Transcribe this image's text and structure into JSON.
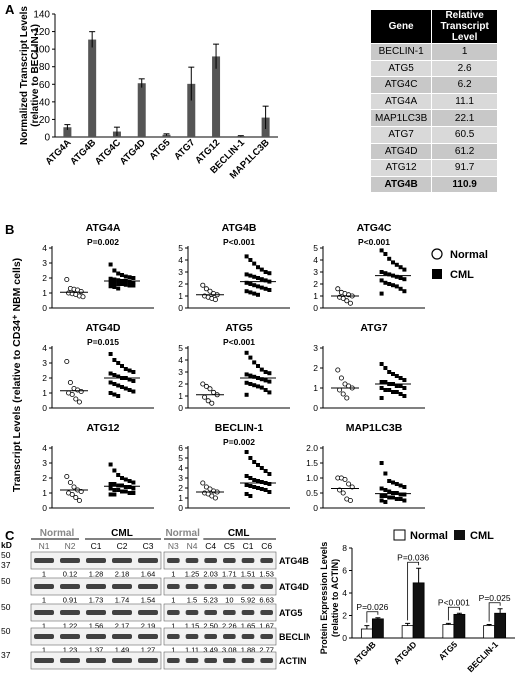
{
  "panels": {
    "a": "A",
    "b": "B",
    "c": "C"
  },
  "chart_data": [
    {
      "type": "bar",
      "panel": "A",
      "ylabel_line1": "Normalized Transcript Levels",
      "ylabel_line2": "(relative to BECLIN-1)",
      "ylim": [
        0,
        140
      ],
      "yticks": [
        0,
        20,
        40,
        60,
        80,
        100,
        120,
        140
      ],
      "categories": [
        "ATG4A",
        "ATG4B",
        "ATG4C",
        "ATG4D",
        "ATG5",
        "ATG7",
        "ATG12",
        "BECLIN-1",
        "MAP1LC3B"
      ],
      "values": [
        11.1,
        110.9,
        6.2,
        61.2,
        2.6,
        60.5,
        91.7,
        1,
        22.1
      ],
      "errors": [
        3,
        9,
        5,
        5,
        1,
        19,
        14,
        0.5,
        13
      ],
      "bar_color": "#555555"
    },
    {
      "type": "table",
      "panel": "A",
      "header": [
        "Gene",
        "Relative Transcript Level"
      ],
      "rows": [
        [
          "BECLIN-1",
          "1"
        ],
        [
          "ATG5",
          "2.6"
        ],
        [
          "ATG4C",
          "6.2"
        ],
        [
          "ATG4A",
          "11.1"
        ],
        [
          "MAP1LC3B",
          "22.1"
        ],
        [
          "ATG7",
          "60.5"
        ],
        [
          "ATG4D",
          "61.2"
        ],
        [
          "ATG12",
          "91.7"
        ],
        [
          "ATG4B",
          "110.9"
        ]
      ]
    },
    {
      "type": "scatter",
      "panel": "B",
      "ylabel": "Transcript Levels (relative to CD34⁺ NBM cells)",
      "legend": [
        {
          "name": "Normal",
          "marker": "open-circle"
        },
        {
          "name": "CML",
          "marker": "filled-square"
        }
      ],
      "subplots": [
        {
          "title": "ATG4A",
          "pvalue": "P=0.002",
          "ylim": [
            0,
            4
          ],
          "yticks": [
            "0",
            "1",
            "2",
            "3",
            "4"
          ],
          "ytick_values": [
            0,
            1,
            2,
            3,
            4
          ],
          "normal_mean": 1.05,
          "cml_mean": 1.8,
          "normal": [
            1.9,
            1.3,
            1.25,
            1.2,
            1.1,
            1.0,
            0.95,
            0.9,
            0.8,
            0.75
          ],
          "cml": [
            2.9,
            2.5,
            2.3,
            2.2,
            2.1,
            2.05,
            2.0,
            1.95,
            1.9,
            1.85,
            1.8,
            1.8,
            1.75,
            1.7,
            1.7,
            1.65,
            1.6,
            1.6,
            1.55,
            1.5,
            1.5,
            1.45,
            1.4,
            1.3
          ]
        },
        {
          "title": "ATG4B",
          "pvalue": "P<0.001",
          "ylim": [
            0,
            5
          ],
          "yticks": [
            "0",
            "1",
            "2",
            "3",
            "4",
            "5"
          ],
          "ytick_values": [
            0,
            1,
            2,
            3,
            4,
            5
          ],
          "normal_mean": 1.1,
          "cml_mean": 2.2,
          "normal": [
            1.9,
            1.6,
            1.4,
            1.2,
            1.1,
            1.0,
            0.9,
            0.8,
            0.7
          ],
          "cml": [
            4.3,
            4.0,
            3.7,
            3.4,
            3.2,
            3.0,
            2.9,
            2.8,
            2.7,
            2.6,
            2.5,
            2.4,
            2.3,
            2.2,
            2.1,
            2.0,
            1.9,
            1.8,
            1.7,
            1.6,
            1.5,
            1.4,
            1.3,
            1.2,
            1.1
          ]
        },
        {
          "title": "ATG4C",
          "pvalue": "P<0.001",
          "ylim": [
            0,
            5
          ],
          "yticks": [
            "0",
            "1",
            "2",
            "3",
            "4",
            "5"
          ],
          "ytick_values": [
            0,
            1,
            2,
            3,
            4,
            5
          ],
          "normal_mean": 1.0,
          "cml_mean": 2.7,
          "normal": [
            1.6,
            1.3,
            1.2,
            1.1,
            1.0,
            0.9,
            0.8,
            0.6,
            0.4
          ],
          "cml": [
            4.8,
            4.5,
            4.1,
            3.8,
            3.6,
            3.4,
            3.2,
            3.0,
            2.9,
            2.8,
            2.7,
            2.6,
            2.5,
            2.4,
            2.3,
            2.1,
            2.0,
            1.9,
            1.8,
            1.6,
            1.4,
            1.2
          ]
        },
        {
          "title": "ATG4D",
          "pvalue": "P=0.015",
          "ylim": [
            0,
            4
          ],
          "yticks": [
            "0",
            "1",
            "2",
            "3",
            "4"
          ],
          "ytick_values": [
            0,
            1,
            2,
            3,
            4
          ],
          "normal_mean": 1.15,
          "cml_mean": 2.0,
          "normal": [
            3.1,
            1.7,
            1.3,
            1.2,
            1.1,
            1.0,
            0.9,
            0.6,
            0.4
          ],
          "cml": [
            3.6,
            3.2,
            3.0,
            2.8,
            2.6,
            2.5,
            2.4,
            2.3,
            2.2,
            2.1,
            2.0,
            2.0,
            1.9,
            1.8,
            1.7,
            1.6,
            1.5,
            1.4,
            1.3,
            1.2,
            1.1,
            1.0,
            0.9,
            0.8
          ]
        },
        {
          "title": "ATG5",
          "pvalue": "P<0.001",
          "ylim": [
            0,
            5
          ],
          "yticks": [
            "0",
            "1",
            "2",
            "3",
            "4",
            "5"
          ],
          "ytick_values": [
            0,
            1,
            2,
            3,
            4,
            5
          ],
          "normal_mean": 1.1,
          "cml_mean": 2.5,
          "normal": [
            2.0,
            1.8,
            1.6,
            1.3,
            1.1,
            0.9,
            0.6,
            0.4
          ],
          "cml": [
            4.6,
            4.2,
            3.8,
            3.5,
            3.2,
            3.0,
            2.9,
            2.8,
            2.7,
            2.6,
            2.5,
            2.4,
            2.3,
            2.2,
            2.1,
            2.0,
            1.9,
            1.8,
            1.7,
            1.5,
            1.3,
            1.1
          ]
        },
        {
          "title": "ATG7",
          "pvalue": "",
          "ylim": [
            0,
            3
          ],
          "yticks": [
            "0",
            "1",
            "2",
            "3"
          ],
          "ytick_values": [
            0,
            1,
            2,
            3
          ],
          "normal_mean": 1.0,
          "cml_mean": 1.2,
          "normal": [
            1.9,
            1.5,
            1.2,
            1.1,
            1.0,
            0.9,
            0.7,
            0.5
          ],
          "cml": [
            2.2,
            2.0,
            1.8,
            1.7,
            1.6,
            1.5,
            1.4,
            1.3,
            1.3,
            1.2,
            1.2,
            1.1,
            1.1,
            1.0,
            1.0,
            0.9,
            0.9,
            0.8,
            0.8,
            0.7,
            0.6,
            0.5
          ]
        },
        {
          "title": "ATG12",
          "pvalue": "",
          "ylim": [
            0,
            4
          ],
          "yticks": [
            "0",
            "1",
            "2",
            "3",
            "4"
          ],
          "ytick_values": [
            0,
            1,
            2,
            3,
            4
          ],
          "normal_mean": 1.2,
          "cml_mean": 1.45,
          "normal": [
            2.1,
            1.7,
            1.4,
            1.2,
            1.1,
            1.0,
            0.9,
            0.7,
            0.5
          ],
          "cml": [
            2.9,
            2.5,
            2.2,
            2.0,
            1.9,
            1.8,
            1.7,
            1.6,
            1.6,
            1.5,
            1.5,
            1.4,
            1.4,
            1.3,
            1.3,
            1.2,
            1.2,
            1.1,
            1.1,
            1.0,
            1.0,
            0.9,
            0.9
          ]
        },
        {
          "title": "BECLIN-1",
          "pvalue": "P=0.002",
          "ylim": [
            0,
            6
          ],
          "yticks": [
            "0",
            "1",
            "2",
            "3",
            "4",
            "5",
            "6"
          ],
          "ytick_values": [
            0,
            1,
            2,
            3,
            4,
            5,
            6
          ],
          "normal_mean": 1.6,
          "cml_mean": 2.5,
          "normal": [
            2.5,
            2.1,
            1.9,
            1.7,
            1.6,
            1.5,
            1.4,
            1.2,
            1.0
          ],
          "cml": [
            5.6,
            5.0,
            4.6,
            4.3,
            4.0,
            3.7,
            3.4,
            3.2,
            3.0,
            2.8,
            2.7,
            2.6,
            2.5,
            2.4,
            2.3,
            2.2,
            2.1,
            2.0,
            1.9,
            1.8,
            1.6,
            1.4,
            1.2
          ]
        },
        {
          "title": "MAP1LC3B",
          "pvalue": "",
          "ylim": [
            0,
            2
          ],
          "yticks": [
            "0",
            "0.5",
            "1.0",
            "1.5",
            "2.0"
          ],
          "ytick_values": [
            0,
            0.5,
            1.0,
            1.5,
            2.0
          ],
          "normal_mean": 0.65,
          "cml_mean": 0.48,
          "normal": [
            1.0,
            1.0,
            0.95,
            0.8,
            0.7,
            0.6,
            0.5,
            0.3,
            0.25
          ],
          "cml": [
            1.5,
            1.15,
            0.9,
            0.85,
            0.8,
            0.75,
            0.7,
            0.65,
            0.6,
            0.55,
            0.5,
            0.5,
            0.45,
            0.45,
            0.4,
            0.4,
            0.35,
            0.35,
            0.3,
            0.3,
            0.25,
            0.25,
            0.2
          ]
        }
      ]
    },
    {
      "type": "bar",
      "panel": "C",
      "ylabel_line1": "Protein Expression Levels",
      "ylabel_line2": "(relative to ACTIN)",
      "ylim": [
        0,
        8
      ],
      "yticks": [
        0,
        2,
        4,
        6,
        8
      ],
      "categories": [
        "ATG4B",
        "ATG4D",
        "ATG5",
        "BECLIN-1"
      ],
      "series": [
        {
          "name": "Normal",
          "values": [
            0.8,
            1.1,
            1.2,
            1.1
          ],
          "errors": [
            0.3,
            0.2,
            0.1,
            0.1
          ],
          "color": "#ffffff"
        },
        {
          "name": "CML",
          "values": [
            1.7,
            4.9,
            2.1,
            2.2
          ],
          "errors": [
            0.1,
            1.3,
            0.1,
            0.4
          ],
          "color": "#111111"
        }
      ],
      "pvalues": [
        "P=0.026",
        "P=0.036",
        "P<0.001",
        "P=0.025"
      ]
    }
  ],
  "blot": {
    "unit": "kD",
    "group_left_normal": "Normal",
    "group_left_cml": "CML",
    "group_right_normal": "Normal",
    "group_right_cml": "CML",
    "lanes_left": [
      "N1",
      "N2",
      "C1",
      "C2",
      "C3"
    ],
    "lanes_right": [
      "N3",
      "N4",
      "C4",
      "C5",
      "C1",
      "C6"
    ],
    "rows": [
      {
        "marker": "50",
        "marker2": "37",
        "label": "ATG4B",
        "left": [
          "1",
          "0.12",
          "1.28",
          "2.18",
          "1.64"
        ],
        "right": [
          "1",
          "1.25",
          "2.03",
          "1.71",
          "1.51",
          "1.53"
        ]
      },
      {
        "marker": "50",
        "marker2": "",
        "label": "ATG4D",
        "left": [
          "1",
          "0.91",
          "1.73",
          "1.74",
          "1.54"
        ],
        "right": [
          "1",
          "1.5",
          "5.23",
          "10",
          "5.92",
          "6.63"
        ]
      },
      {
        "marker": "50",
        "marker2": "",
        "label": "ATG5",
        "left": [
          "1",
          "1.22",
          "1.56",
          "2.17",
          "2.19"
        ],
        "right": [
          "1",
          "1.15",
          "2.50",
          "2.26",
          "1.65",
          "1.67"
        ]
      },
      {
        "marker": "50",
        "marker2": "",
        "label": "BECLIN-1",
        "left": [
          "1",
          "1.23",
          "1.37",
          "1.49",
          "1.27"
        ],
        "right": [
          "1",
          "1.11",
          "3.49",
          "3.08",
          "1.88",
          "2.77"
        ]
      },
      {
        "marker": "37",
        "marker2": "",
        "label": "ACTIN",
        "left": [],
        "right": []
      }
    ]
  }
}
